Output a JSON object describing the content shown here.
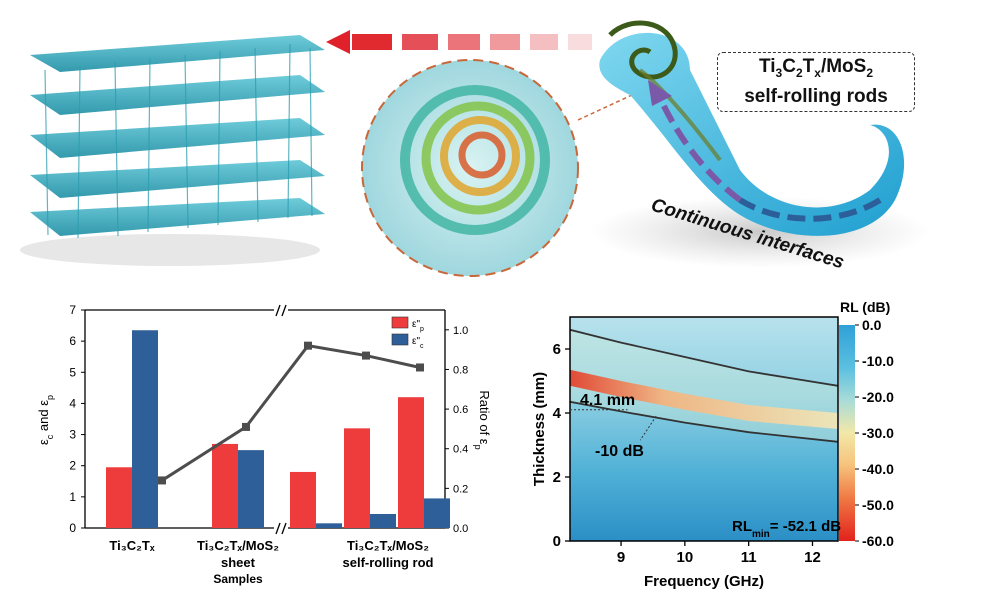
{
  "top": {
    "label_line1_parts": [
      "Ti",
      "3",
      "C",
      "2",
      "T",
      "x",
      "/MoS",
      "2"
    ],
    "label_line2": "self-rolling rods",
    "continuous_label": "Continuous interfaces"
  },
  "chart_data": [
    {
      "type": "bar",
      "title": "",
      "xlabel": "Samples",
      "ylabel": "εc and εp",
      "y2label": "Ratio of εp",
      "ylim": [
        0,
        7
      ],
      "y2lim": [
        0,
        1.1
      ],
      "categories": [
        "Ti3C2Tx",
        "Ti3C2Tx/MoS2 sheet",
        "Ti3C2Tx/MoS2 self-rolling rod (1)",
        "Ti3C2Tx/MoS2 self-rolling rod (2)",
        "Ti3C2Tx/MoS2 self-rolling rod (3)"
      ],
      "tick_labels": {
        "cat1": "Ti₃C₂Tₓ",
        "cat2_line1": "Ti₃C₂Tₓ/MoS₂",
        "cat2_line2": "sheet",
        "cat3_line1": "Ti₃C₂Tₓ/MoS₂",
        "cat3_line2": "self-rolling rod"
      },
      "series": [
        {
          "name": "ε''p",
          "color": "#ee3b3b",
          "values": [
            1.95,
            2.7,
            1.8,
            3.2,
            4.2
          ]
        },
        {
          "name": "ε''c",
          "color": "#2f5f98",
          "values": [
            6.35,
            2.5,
            0.15,
            0.45,
            0.95
          ]
        }
      ],
      "ratio_line": {
        "name": "Ratio of εp",
        "color": "#4d4d4d",
        "values": [
          0.24,
          0.51,
          0.92,
          0.87,
          0.81
        ]
      },
      "legend": [
        "ε\"p",
        "ε\"c"
      ],
      "y_ticks": [
        "0",
        "1",
        "2",
        "3",
        "4",
        "5",
        "6",
        "7"
      ],
      "y2_ticks": [
        "0.0",
        "0.2",
        "0.4",
        "0.6",
        "0.8",
        "1.0"
      ]
    },
    {
      "type": "heatmap",
      "xlabel": "Frequency (GHz)",
      "ylabel": "Thickness (mm)",
      "xlim": [
        8.2,
        12.4
      ],
      "ylim": [
        0,
        7
      ],
      "x_ticks": [
        "9",
        "10",
        "11",
        "12"
      ],
      "y_ticks": [
        "0",
        "2",
        "4",
        "6"
      ],
      "colorbar_title": "RL (dB)",
      "colorbar_ticks": [
        "0.0",
        "-10.0",
        "-20.0",
        "-30.0",
        "-40.0",
        "-50.0",
        "-60.0"
      ],
      "contour_label": "-10 dB",
      "thickness_label": "4.1 mm",
      "rlmin_prefix": "RL",
      "rlmin_sub": "min",
      "rlmin_value": "= -52.1 dB",
      "contour_upper": [
        [
          8.2,
          6.6
        ],
        [
          9.0,
          6.2
        ],
        [
          10.0,
          5.75
        ],
        [
          11.0,
          5.3
        ],
        [
          12.4,
          4.85
        ]
      ],
      "contour_lower": [
        [
          8.2,
          4.35
        ],
        [
          9.0,
          4.05
        ],
        [
          10.0,
          3.7
        ],
        [
          11.0,
          3.4
        ],
        [
          12.4,
          3.1
        ]
      ],
      "absorption_band": [
        [
          8.2,
          5.1
        ],
        [
          9.0,
          4.75
        ],
        [
          10.0,
          4.35
        ],
        [
          11.0,
          4.0
        ],
        [
          12.4,
          3.75
        ]
      ]
    }
  ]
}
